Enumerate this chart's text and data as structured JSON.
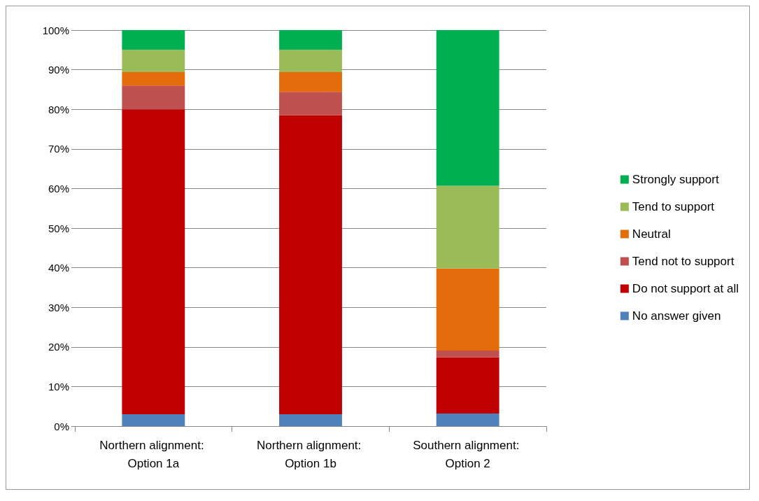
{
  "chart_data": {
    "type": "bar",
    "stacked": true,
    "categories": [
      "Northern alignment: Option 1a",
      "Northern alignment: Option 1b",
      "Southern alignment: Option 2"
    ],
    "series": [
      {
        "name": "No answer given",
        "color": "#4f81bd",
        "values": [
          3,
          3,
          3.2
        ]
      },
      {
        "name": "Do not support at all",
        "color": "#c00000",
        "values": [
          77,
          75.5,
          14.2
        ]
      },
      {
        "name": "Tend not to support",
        "color": "#c0504d",
        "values": [
          6,
          5.9,
          1.7
        ]
      },
      {
        "name": "Neutral",
        "color": "#e46c0a",
        "values": [
          3.4,
          5,
          20.7
        ]
      },
      {
        "name": "Tend to support",
        "color": "#9bbb59",
        "values": [
          5.6,
          5.6,
          20.9
        ]
      },
      {
        "name": "Strongly support",
        "color": "#00b050",
        "values": [
          5,
          5,
          39.3
        ]
      }
    ],
    "ylim": [
      0,
      100
    ],
    "yticks": [
      {
        "value": 0,
        "label": "0%"
      },
      {
        "value": 10,
        "label": "10%"
      },
      {
        "value": 20,
        "label": "20%"
      },
      {
        "value": 30,
        "label": "30%"
      },
      {
        "value": 40,
        "label": "40%"
      },
      {
        "value": 50,
        "label": "50%"
      },
      {
        "value": 60,
        "label": "60%"
      },
      {
        "value": 70,
        "label": "70%"
      },
      {
        "value": 80,
        "label": "80%"
      },
      {
        "value": 90,
        "label": "90%"
      },
      {
        "value": 100,
        "label": "100%"
      }
    ],
    "grid": "y",
    "legend": "right"
  }
}
